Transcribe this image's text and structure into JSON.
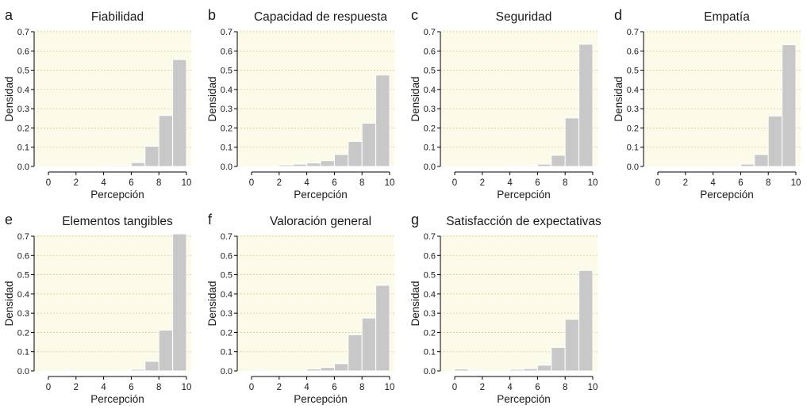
{
  "colors": {
    "plot_background": "#fcfbea",
    "bar_fill": "#c8c8c8",
    "bar_edge": "#ffffff",
    "grid": "#cfcf8a",
    "axis": "#000000"
  },
  "chart_data": [
    {
      "panel": "a",
      "type": "bar",
      "title": "Fiabilidad",
      "xlabel": "Percepción",
      "ylabel": "Densidad",
      "xlim": [
        0,
        10
      ],
      "ylim": [
        0,
        0.7
      ],
      "xticks": [
        "0",
        "2",
        "4",
        "6",
        "8",
        "10"
      ],
      "yticks": [
        "0.0",
        "0.1",
        "0.2",
        "0.3",
        "0.4",
        "0.5",
        "0.6",
        "0.7"
      ],
      "grid": "horizontal",
      "bin_edges": [
        0,
        1,
        2,
        3,
        4,
        5,
        6,
        7,
        8,
        9,
        10
      ],
      "values": [
        0,
        0,
        0,
        0,
        0.005,
        0.005,
        0.02,
        0.105,
        0.265,
        0.555
      ]
    },
    {
      "panel": "b",
      "type": "bar",
      "title": "Capacidad de respuesta",
      "xlabel": "Percepción",
      "ylabel": "Densidad",
      "xlim": [
        0,
        10
      ],
      "ylim": [
        0,
        0.7
      ],
      "xticks": [
        "0",
        "2",
        "4",
        "6",
        "8",
        "10"
      ],
      "yticks": [
        "0.0",
        "0.1",
        "0.2",
        "0.3",
        "0.4",
        "0.5",
        "0.6",
        "0.7"
      ],
      "grid": "horizontal",
      "bin_edges": [
        0,
        1,
        2,
        3,
        4,
        5,
        6,
        7,
        8,
        9,
        10
      ],
      "values": [
        0,
        0,
        0.008,
        0.012,
        0.018,
        0.03,
        0.062,
        0.13,
        0.225,
        0.475
      ]
    },
    {
      "panel": "c",
      "type": "bar",
      "title": "Seguridad",
      "xlabel": "Percepción",
      "ylabel": "Densidad",
      "xlim": [
        0,
        10
      ],
      "ylim": [
        0,
        0.7
      ],
      "xticks": [
        "0",
        "2",
        "4",
        "6",
        "8",
        "10"
      ],
      "yticks": [
        "0.0",
        "0.1",
        "0.2",
        "0.3",
        "0.4",
        "0.5",
        "0.6",
        "0.7"
      ],
      "grid": "horizontal",
      "bin_edges": [
        0,
        1,
        2,
        3,
        4,
        5,
        6,
        7,
        8,
        9,
        10
      ],
      "values": [
        0,
        0,
        0,
        0,
        0.004,
        0.004,
        0.012,
        0.058,
        0.252,
        0.635
      ]
    },
    {
      "panel": "d",
      "type": "bar",
      "title": "Empatía",
      "xlabel": "Percepción",
      "ylabel": "Densidad",
      "xlim": [
        0,
        10
      ],
      "ylim": [
        0,
        0.7
      ],
      "xticks": [
        "0",
        "2",
        "4",
        "6",
        "8",
        "10"
      ],
      "yticks": [
        "0.0",
        "0.1",
        "0.2",
        "0.3",
        "0.4",
        "0.5",
        "0.6",
        "0.7"
      ],
      "grid": "horizontal",
      "bin_edges": [
        0,
        1,
        2,
        3,
        4,
        5,
        6,
        7,
        8,
        9,
        10
      ],
      "values": [
        0,
        0,
        0,
        0,
        0,
        0,
        0.012,
        0.062,
        0.262,
        0.632
      ]
    },
    {
      "panel": "e",
      "type": "bar",
      "title": "Elementos tangibles",
      "xlabel": "Percepción",
      "ylabel": "Densidad",
      "xlim": [
        0,
        10
      ],
      "ylim": [
        0,
        0.7
      ],
      "xticks": [
        "0",
        "2",
        "4",
        "6",
        "8",
        "10"
      ],
      "yticks": [
        "0.0",
        "0.1",
        "0.2",
        "0.3",
        "0.4",
        "0.5",
        "0.6",
        "0.7"
      ],
      "grid": "horizontal",
      "bin_edges": [
        0,
        1,
        2,
        3,
        4,
        5,
        6,
        7,
        8,
        9,
        10
      ],
      "values": [
        0,
        0.004,
        0,
        0,
        0,
        0,
        0.008,
        0.05,
        0.212,
        0.712
      ]
    },
    {
      "panel": "f",
      "type": "bar",
      "title": "Valoración general",
      "xlabel": "Percepción",
      "ylabel": "Densidad",
      "xlim": [
        0,
        10
      ],
      "ylim": [
        0,
        0.7
      ],
      "xticks": [
        "0",
        "2",
        "4",
        "6",
        "8",
        "10"
      ],
      "yticks": [
        "0.0",
        "0.1",
        "0.2",
        "0.3",
        "0.4",
        "0.5",
        "0.6",
        "0.7"
      ],
      "grid": "horizontal",
      "bin_edges": [
        0,
        1,
        2,
        3,
        4,
        5,
        6,
        7,
        8,
        9,
        10
      ],
      "values": [
        0.004,
        0,
        0,
        0,
        0.01,
        0.018,
        0.038,
        0.188,
        0.275,
        0.445
      ]
    },
    {
      "panel": "g",
      "type": "bar",
      "title": "Satisfacción de expectativas",
      "xlabel": "Percepción",
      "ylabel": "Densidad",
      "xlim": [
        0,
        10
      ],
      "ylim": [
        0,
        0.7
      ],
      "xticks": [
        "0",
        "2",
        "4",
        "6",
        "8",
        "10"
      ],
      "yticks": [
        "0.0",
        "0.1",
        "0.2",
        "0.3",
        "0.4",
        "0.5",
        "0.6",
        "0.7"
      ],
      "grid": "horizontal",
      "bin_edges": [
        0,
        1,
        2,
        3,
        4,
        5,
        6,
        7,
        8,
        9,
        10
      ],
      "values": [
        0.01,
        0.004,
        0,
        0,
        0.008,
        0.012,
        0.03,
        0.122,
        0.268,
        0.522
      ]
    }
  ]
}
